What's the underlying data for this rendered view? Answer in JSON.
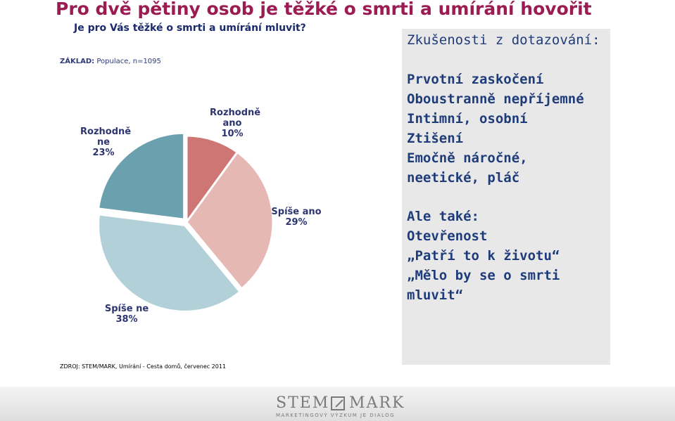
{
  "colors": {
    "title": "#9b1b52",
    "question": "#1a2a6c"
  },
  "header": {
    "title": "Pro dvě pětiny osob je těžké o smrti a umírání hovořit",
    "question": "Je pro Vás těžké o smrti a umírání mluvit?",
    "basis_label": "ZÁKLAD:",
    "basis_value": " Populace, n=1095"
  },
  "chart_data": {
    "type": "pie",
    "slices": [
      {
        "label": "Rozhodně ano",
        "value": 10,
        "display": "Rozhodně\nano\n10%",
        "color": "#cd7673",
        "exploded": false
      },
      {
        "label": "Spíše ano",
        "value": 29,
        "display": "Spíše ano\n29%",
        "color": "#e6b8b4",
        "exploded": false
      },
      {
        "label": "Spíše ne",
        "value": 38,
        "display": "Spíše ne\n38%",
        "color": "#b2d0d8",
        "exploded": true
      },
      {
        "label": "Rozhodně ne",
        "value": 23,
        "display": "Rozhodně\nne\n23%",
        "color": "#6ba1ae",
        "exploded": true
      }
    ]
  },
  "panel": {
    "heading": "Zkušenosti z dotazování:",
    "list1": [
      "Prvotní zaskočení",
      "Oboustranně nepříjemné",
      "Intimní, osobní",
      "Ztišení",
      "Emočně náročné,",
      "neetické, pláč"
    ],
    "list2": [
      "Ale také:",
      "Otevřenost",
      "„Patří to k životu“",
      "„Mělo by se o smrti",
      "mluvit“"
    ]
  },
  "source": "ZDROJ: STEM/MARK, Umírání - Cesta domů, červenec 2011",
  "logo": {
    "left": "STEM",
    "right": "MARK",
    "tagline": "MARKETINGOVÝ VÝZKUM JE DIALOG"
  }
}
